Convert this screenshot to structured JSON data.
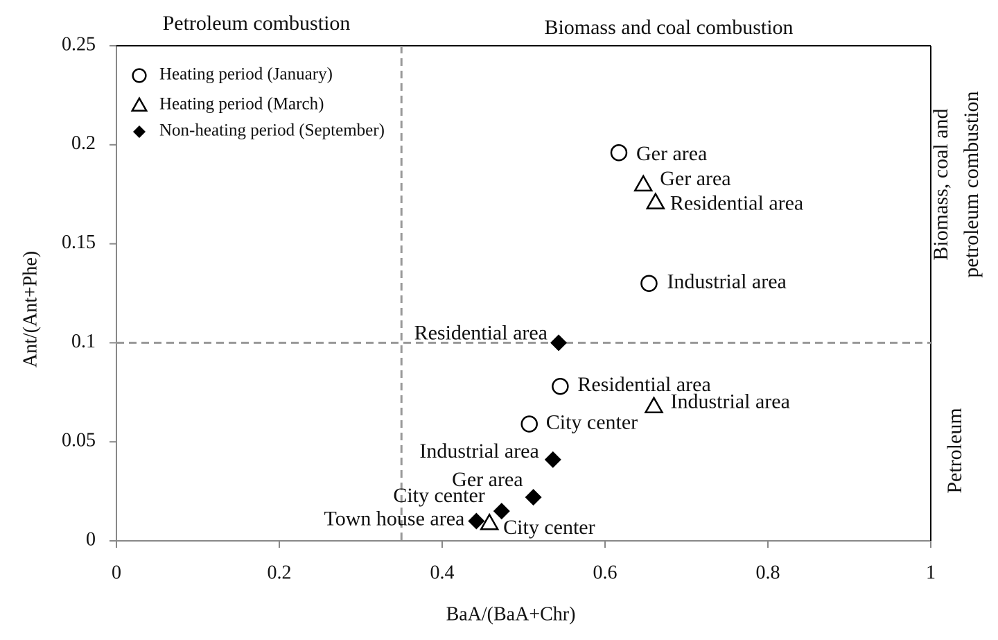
{
  "chart_data": {
    "type": "scatter",
    "x_label": "BaA/(BaA+Chr)",
    "y_label": "Ant/(Ant+Phe)",
    "xlim": [
      0,
      1
    ],
    "xticks": [
      0,
      0.2,
      0.4,
      0.6,
      0.8,
      1
    ],
    "ylim": [
      0,
      0.25
    ],
    "yticks": [
      0,
      0.05,
      0.1,
      0.15,
      0.2,
      0.25
    ],
    "reference_lines": {
      "x": 0.35,
      "y": 0.1
    },
    "annotations": {
      "top_left": "Petroleum combustion",
      "top_right": "Biomass and coal combustion",
      "right_upper": [
        "Biomass, coal and",
        "petroleum combustion"
      ],
      "right_lower": "Petroleum"
    },
    "legend": "upper left",
    "series": [
      {
        "name": "Heating period (January)",
        "marker": "circle",
        "color": "#000000",
        "x": [
          0.617,
          0.654,
          0.545,
          0.507
        ],
        "values": [
          0.196,
          0.13,
          0.078,
          0.059
        ],
        "labels": [
          "Ger area",
          "Industrial area",
          "Residential area",
          "City center"
        ]
      },
      {
        "name": "Heating period (March)",
        "marker": "triangle",
        "color": "#000000",
        "x": [
          0.647,
          0.662,
          0.66,
          0.458
        ],
        "values": [
          0.18,
          0.171,
          0.068,
          0.009
        ],
        "labels": [
          "Ger area",
          "Residential area",
          "Industrial area",
          "City center"
        ]
      },
      {
        "name": "Non-heating period (September)",
        "marker": "diamond",
        "color": "#000000",
        "x": [
          0.543,
          0.536,
          0.512,
          0.473,
          0.442
        ],
        "values": [
          0.1,
          0.041,
          0.022,
          0.015,
          0.01
        ],
        "labels": [
          "Residential area",
          "Industrial area",
          "Ger area",
          "City center",
          "Town house area"
        ]
      }
    ]
  }
}
